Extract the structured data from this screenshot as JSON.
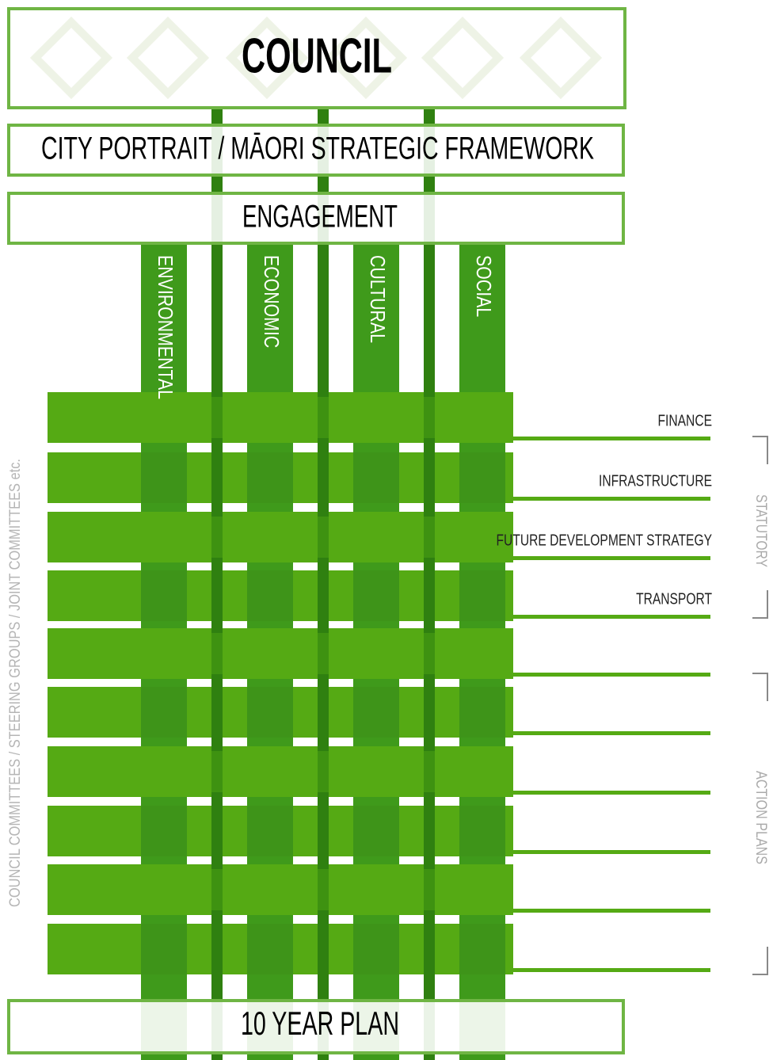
{
  "header": {
    "title": "COUNCIL"
  },
  "framework": "CITY PORTRAIT / MĀORI STRATEGIC FRAMEWORK",
  "engagement": "ENGAGEMENT",
  "pillars": [
    "ENVIRONMENTAL",
    "ECONOMIC",
    "CULTURAL",
    "SOCIAL"
  ],
  "strands": [
    "FINANCE",
    "INFRASTRUCTURE",
    "FUTURE DEVELOPMENT STRATEGY",
    "TRANSPORT"
  ],
  "side_label": "COUNCIL COMMITTEES / STEERING GROUPS / JOINT COMMITTEES etc.",
  "groups": [
    "STATUTORY",
    "ACTION PLANS"
  ],
  "footer": "10 YEAR PLAN"
}
